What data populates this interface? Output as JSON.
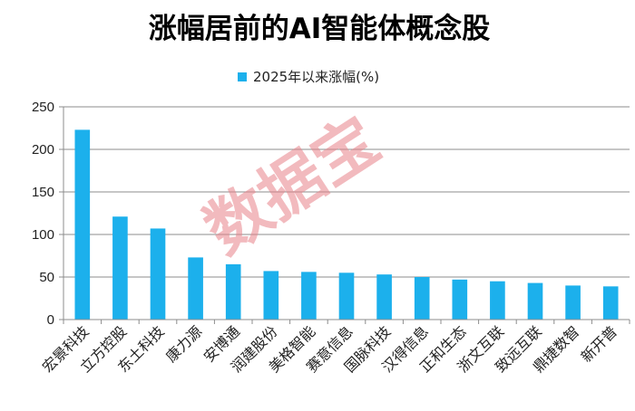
{
  "chart_data": {
    "type": "bar",
    "title": "涨幅居前的AI智能体概念股",
    "xlabel": "",
    "ylabel": "",
    "categories": [
      "宏景科技",
      "立方控股",
      "东土科技",
      "康力源",
      "安博通",
      "润建股份",
      "美格智能",
      "赛意信息",
      "国脉科技",
      "汉得信息",
      "正和生态",
      "浙文互联",
      "致远互联",
      "鼎捷数智",
      "新开普"
    ],
    "series": [
      {
        "name": "2025年以来涨幅(%)",
        "values": [
          223,
          121,
          107,
          73,
          65,
          57,
          56,
          55,
          53,
          50,
          47,
          45,
          43,
          40,
          39
        ]
      }
    ],
    "ylim": [
      0,
      250
    ],
    "yticks": [
      "0",
      "50",
      "100",
      "150",
      "200",
      "250"
    ],
    "grid": true,
    "legend_position": "top-center",
    "bar_color": "#1cb0ec"
  },
  "watermark": "数据宝"
}
